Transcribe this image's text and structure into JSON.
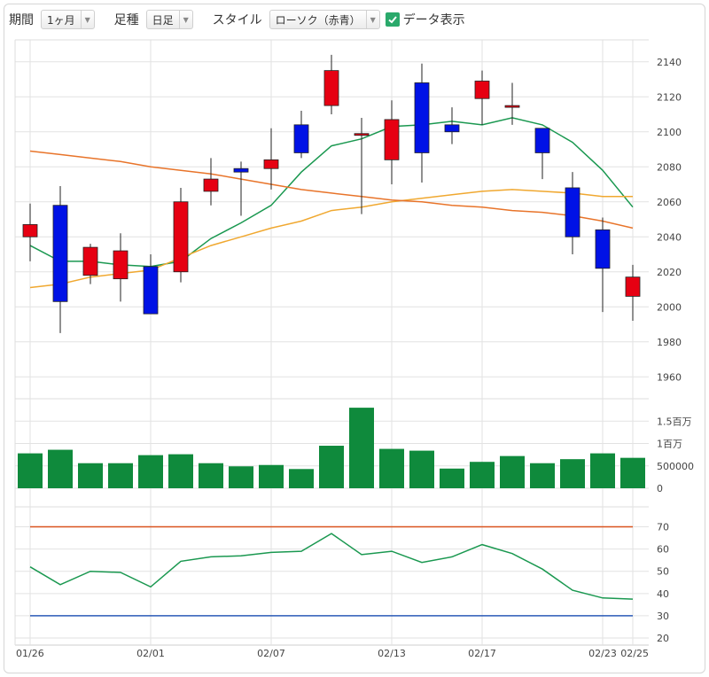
{
  "toolbar": {
    "period_label": "期間",
    "period_value": "1ヶ月",
    "bar_label": "足種",
    "bar_value": "日足",
    "style_label": "スタイル",
    "style_value": "ローソク（赤青）",
    "data_toggle_label": "データ表示",
    "data_toggle_checked": true
  },
  "colors": {
    "up": "#e60012",
    "down": "#0012e6",
    "volume": "#0f8a3c",
    "ma_short": "#1a9850",
    "ma_mid": "#f0a830",
    "ma_long": "#e8742a",
    "rsi": "#1a9850",
    "rsi_upper": "#d9531e",
    "rsi_lower": "#2a5ab8"
  },
  "chart_data": [
    {
      "type": "candlestick",
      "ylim": [
        1950,
        2150
      ],
      "yticks": [
        "2140",
        "2120",
        "2100",
        "2080",
        "2060",
        "2040",
        "2020",
        "2000",
        "1980",
        "1960"
      ],
      "xticks": [
        "01/26",
        "02/01",
        "02/07",
        "02/13",
        "02/17",
        "02/23",
        "02/25"
      ],
      "ohlc": [
        {
          "o": 2040,
          "h": 2059,
          "l": 2026,
          "c": 2047
        },
        {
          "o": 2058,
          "h": 2069,
          "l": 1985,
          "c": 2003
        },
        {
          "o": 2018,
          "h": 2036,
          "l": 2013,
          "c": 2034
        },
        {
          "o": 2016,
          "h": 2042,
          "l": 2003,
          "c": 2032
        },
        {
          "o": 2023,
          "h": 2030,
          "l": 1996,
          "c": 1996
        },
        {
          "o": 2020,
          "h": 2068,
          "l": 2014,
          "c": 2060
        },
        {
          "o": 2066,
          "h": 2085,
          "l": 2058,
          "c": 2073
        },
        {
          "o": 2079,
          "h": 2083,
          "l": 2052,
          "c": 2077
        },
        {
          "o": 2079,
          "h": 2102,
          "l": 2067,
          "c": 2084
        },
        {
          "o": 2104,
          "h": 2112,
          "l": 2085,
          "c": 2088
        },
        {
          "o": 2115,
          "h": 2144,
          "l": 2110,
          "c": 2135
        },
        {
          "o": 2098,
          "h": 2108,
          "l": 2053,
          "c": 2099
        },
        {
          "o": 2084,
          "h": 2118,
          "l": 2070,
          "c": 2107
        },
        {
          "o": 2128,
          "h": 2139,
          "l": 2071,
          "c": 2088
        },
        {
          "o": 2104,
          "h": 2114,
          "l": 2093,
          "c": 2100
        },
        {
          "o": 2119,
          "h": 2135,
          "l": 2104,
          "c": 2129
        },
        {
          "o": 2114,
          "h": 2128,
          "l": 2104,
          "c": 2115
        },
        {
          "o": 2102,
          "h": 2102,
          "l": 2073,
          "c": 2088
        },
        {
          "o": 2068,
          "h": 2077,
          "l": 2030,
          "c": 2040
        },
        {
          "o": 2044,
          "h": 2051,
          "l": 1997,
          "c": 2022
        },
        {
          "o": 2006,
          "h": 2024,
          "l": 1992,
          "c": 2017
        }
      ],
      "series": [
        {
          "values": [
            2035,
            2026,
            2026,
            2024,
            2023,
            2026,
            2039,
            2048,
            2058,
            2077,
            2092,
            2096,
            2103,
            2104,
            2106,
            2104,
            2108,
            2104,
            2094,
            2078,
            2057
          ]
        },
        {
          "values": [
            2011,
            2013,
            2017,
            2019,
            2021,
            2028,
            2035,
            2040,
            2045,
            2049,
            2055,
            2057,
            2060,
            2062,
            2064,
            2066,
            2067,
            2066,
            2065,
            2063,
            2063
          ]
        },
        {
          "values": [
            2089,
            2087,
            2085,
            2083,
            2080,
            2078,
            2076,
            2073,
            2070,
            2067,
            2065,
            2063,
            2061,
            2060,
            2058,
            2057,
            2055,
            2054,
            2052,
            2049,
            2045
          ]
        }
      ]
    },
    {
      "type": "bar",
      "ylim": [
        0,
        2000000
      ],
      "yticks": [
        "1.5百万",
        "1百万",
        "500000",
        "0"
      ],
      "values": [
        780000,
        860000,
        560000,
        560000,
        740000,
        760000,
        560000,
        490000,
        520000,
        430000,
        950000,
        1800000,
        880000,
        840000,
        440000,
        590000,
        720000,
        560000,
        650000,
        780000,
        680000
      ]
    },
    {
      "type": "line",
      "ylim": [
        20,
        75
      ],
      "yticks": [
        "70",
        "60",
        "50",
        "40",
        "30",
        "20"
      ],
      "series": [
        {
          "values": [
            52,
            44,
            50,
            49.5,
            43,
            54.5,
            56.5,
            57,
            58.5,
            59,
            67,
            57.5,
            59,
            54,
            56.5,
            62,
            58,
            51,
            41.5,
            38,
            37.5
          ]
        },
        {
          "values": [
            70,
            70,
            70,
            70,
            70,
            70,
            70,
            70,
            70,
            70,
            70,
            70,
            70,
            70,
            70,
            70,
            70,
            70,
            70,
            70,
            70
          ]
        },
        {
          "values": [
            30,
            30,
            30,
            30,
            30,
            30,
            30,
            30,
            30,
            30,
            30,
            30,
            30,
            30,
            30,
            30,
            30,
            30,
            30,
            30,
            30
          ]
        }
      ]
    }
  ]
}
